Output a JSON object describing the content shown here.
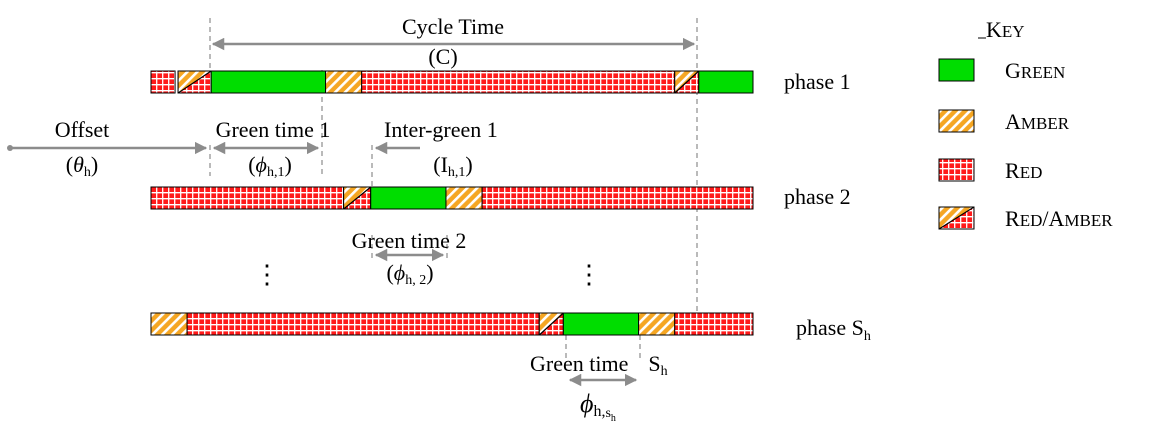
{
  "colors": {
    "green": "#00dd00",
    "amber": "#f5a623",
    "red": "#ff1a1a",
    "annotation": "#8c8c8c"
  },
  "annotations": {
    "cycle_time": "Cycle Time",
    "cycle_symbol": "(C)",
    "offset": "Offset",
    "offset_symbol_open": "(",
    "offset_theta": "θ",
    "offset_sub": "h",
    "offset_symbol_close": ")",
    "green_time_1": "Green time 1",
    "phi_1_sub": "h,1",
    "inter_green_1": "Inter-green 1",
    "inter_1_symbol": "(I",
    "inter_1_sub": "h,1",
    "green_time_2": "Green time 2",
    "phi_2_sub": "h, 2",
    "green_time_s": "Green time",
    "green_time_s_S": "S",
    "green_time_s_sub": "h",
    "phi": "ϕ",
    "paren_open": "(",
    "paren_close": ")",
    "phi_s_sub": "h,",
    "phi_s_subsub": "s",
    "phi_s_subsubsub": "h",
    "vdots": "⋮"
  },
  "phases": [
    {
      "label": "phase 1",
      "segments": [
        {
          "state": "red",
          "start": 0,
          "end": 4
        },
        {
          "state": "red_amber",
          "start": 4.5,
          "end": 10
        },
        {
          "state": "green",
          "start": 10,
          "end": 29
        },
        {
          "state": "amber",
          "start": 29,
          "end": 35
        },
        {
          "state": "red",
          "start": 35,
          "end": 87
        },
        {
          "state": "red_amber",
          "start": 87,
          "end": 91
        },
        {
          "state": "green",
          "start": 91,
          "end": 100
        }
      ]
    },
    {
      "label": "phase 2",
      "segments": [
        {
          "state": "red",
          "start": 0,
          "end": 32
        },
        {
          "state": "red_amber",
          "start": 32,
          "end": 36.5
        },
        {
          "state": "green",
          "start": 36.5,
          "end": 49
        },
        {
          "state": "amber",
          "start": 49,
          "end": 55
        },
        {
          "state": "red",
          "start": 55,
          "end": 100
        }
      ]
    },
    {
      "label": "phase S",
      "label_sub": "h",
      "segments": [
        {
          "state": "amber",
          "start": 0,
          "end": 6
        },
        {
          "state": "red",
          "start": 6,
          "end": 64.5
        },
        {
          "state": "red_amber",
          "start": 64.5,
          "end": 68.5
        },
        {
          "state": "green",
          "start": 68.5,
          "end": 81
        },
        {
          "state": "amber",
          "start": 81,
          "end": 87
        },
        {
          "state": "red",
          "start": 87,
          "end": 100
        }
      ]
    }
  ],
  "key": {
    "title_first": "K",
    "title_rest": "EY",
    "items": [
      {
        "state": "green",
        "first": "G",
        "rest": "REEN"
      },
      {
        "state": "amber",
        "first": "A",
        "rest": "MBER"
      },
      {
        "state": "red",
        "first": "R",
        "rest": "ED"
      },
      {
        "state": "red_amber",
        "first": "R",
        "rest": "ED",
        "slash": "/",
        "first2": "A",
        "rest2": "MBER"
      }
    ]
  }
}
